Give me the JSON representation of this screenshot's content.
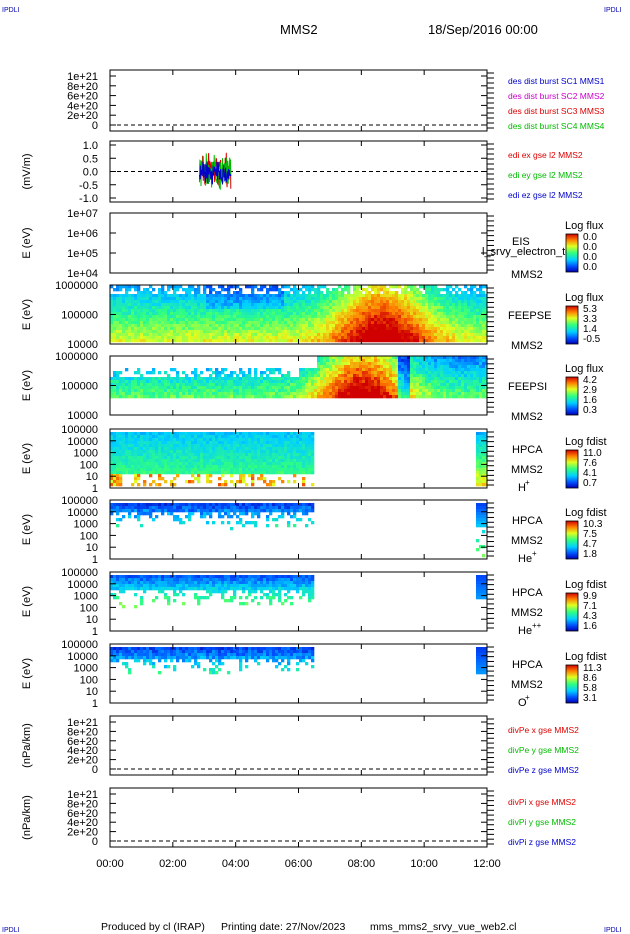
{
  "header": {
    "corner_mark": "IPDLI",
    "spacecraft": "MMS2",
    "datetime": "18/Sep/2016 00:00"
  },
  "footer": {
    "produced_by": "Produced by cl (IRAP)",
    "printing_date": "Printing date: 27/Nov/2023",
    "file_name": "mms_mms2_srvy_vue_web2.cl"
  },
  "chart_data": {
    "type": "multi-panel time series / spectrogram stack",
    "x_axis": {
      "ticks": [
        "00:00",
        "02:00",
        "04:00",
        "06:00",
        "08:00",
        "10:00",
        "12:00"
      ],
      "range_hours": [
        0,
        12
      ]
    },
    "panels": [
      {
        "id": "des-dist",
        "type": "line",
        "ylabel": "",
        "yticks": [
          "1e+21",
          "8e+20",
          "6e+20",
          "4e+20",
          "2e+20",
          "0"
        ],
        "ylim": [
          0,
          1e+21
        ],
        "zero_dashed": true,
        "legend": [
          {
            "text": "des dist burst SC1 MMS1",
            "color": "#0000cc"
          },
          {
            "text": "des dist burst SC2 MMS2",
            "color": "#cc00cc"
          },
          {
            "text": "des dist burst SC3 MMS3",
            "color": "#dd0000"
          },
          {
            "text": "des dist burst SC4 MMS4",
            "color": "#00bb00"
          }
        ]
      },
      {
        "id": "edi",
        "type": "line",
        "ylabel": "(mV/m)",
        "yticks": [
          "1.0",
          "0.5",
          "0.0",
          "-0.5",
          "-1.0"
        ],
        "ylim": [
          -1.0,
          1.0
        ],
        "zero_dashed": true,
        "legend": [
          {
            "text": "edi ex gse l2 MMS2",
            "color": "#dd0000"
          },
          {
            "text": "edi ey gse l2 MMS2",
            "color": "#00bb00"
          },
          {
            "text": "edi ez gse l2 MMS2",
            "color": "#0000cc"
          }
        ],
        "burst_interval_hours": [
          2.85,
          3.85
        ]
      },
      {
        "id": "eis",
        "type": "heatmap",
        "ylabel": "E (eV)",
        "yticks": [
          "1e+07",
          "1e+06",
          "1e+05",
          "1e+04"
        ],
        "log": true,
        "instrument": "EIS",
        "probe": "MMS2",
        "overlay_text": "l_srvy_electron_to",
        "colorbar": {
          "title": "Log flux",
          "ticks": [
            "0.0",
            "0.0",
            "0.0",
            "0.0"
          ]
        }
      },
      {
        "id": "feeps-e",
        "type": "heatmap",
        "ylabel": "E (eV)",
        "yticks": [
          "1000000",
          "100000",
          "10000"
        ],
        "log": true,
        "instrument": "FEEPSE",
        "probe": "MMS2",
        "colorbar": {
          "title": "Log flux",
          "ticks": [
            "5.3",
            "3.3",
            "1.4",
            "-0.5"
          ]
        }
      },
      {
        "id": "feeps-i",
        "type": "heatmap",
        "ylabel": "E (eV)",
        "yticks": [
          "1000000",
          "100000",
          "10000"
        ],
        "log": true,
        "instrument": "FEEPSI",
        "probe": "MMS2",
        "colorbar": {
          "title": "Log flux",
          "ticks": [
            "4.2",
            "2.9",
            "1.6",
            "0.3"
          ]
        }
      },
      {
        "id": "hpca-h",
        "type": "heatmap",
        "ylabel": "E (eV)",
        "yticks": [
          "100000",
          "10000",
          "1000",
          "100",
          "10",
          "1"
        ],
        "log": true,
        "instrument": "HPCA",
        "probe": "MMS2",
        "species": "H",
        "charge": "+",
        "colorbar": {
          "title": "Log fdist",
          "ticks": [
            "11.0",
            "7.6",
            "4.1",
            "0.7"
          ]
        }
      },
      {
        "id": "hpca-he",
        "type": "heatmap",
        "ylabel": "E (eV)",
        "yticks": [
          "100000",
          "10000",
          "1000",
          "100",
          "10",
          "1"
        ],
        "log": true,
        "instrument": "HPCA",
        "probe": "MMS2",
        "species": "He",
        "charge": "+",
        "colorbar": {
          "title": "Log fdist",
          "ticks": [
            "10.3",
            "7.5",
            "4.7",
            "1.8"
          ]
        }
      },
      {
        "id": "hpca-hepp",
        "type": "heatmap",
        "ylabel": "E (eV)",
        "yticks": [
          "100000",
          "10000",
          "1000",
          "100",
          "10",
          "1"
        ],
        "log": true,
        "instrument": "HPCA",
        "probe": "MMS2",
        "species": "He",
        "charge": "++",
        "colorbar": {
          "title": "Log fdist",
          "ticks": [
            "9.9",
            "7.1",
            "4.3",
            "1.6"
          ]
        }
      },
      {
        "id": "hpca-o",
        "type": "heatmap",
        "ylabel": "E (eV)",
        "yticks": [
          "100000",
          "10000",
          "1000",
          "100",
          "10",
          "1"
        ],
        "log": true,
        "instrument": "HPCA",
        "probe": "MMS2",
        "species": "O",
        "charge": "+",
        "colorbar": {
          "title": "Log fdist",
          "ticks": [
            "11.3",
            "8.6",
            "5.8",
            "3.1"
          ]
        }
      },
      {
        "id": "divpe",
        "type": "line",
        "ylabel": "(nPa/km)",
        "yticks": [
          "1e+21",
          "8e+20",
          "6e+20",
          "4e+20",
          "2e+20",
          "0"
        ],
        "ylim": [
          0,
          1e+21
        ],
        "zero_dashed": true,
        "legend": [
          {
            "text": "divPe x gse MMS2",
            "color": "#dd0000"
          },
          {
            "text": "divPe y gse MMS2",
            "color": "#00bb00"
          },
          {
            "text": "divPe z gse MMS2",
            "color": "#0000cc"
          }
        ]
      },
      {
        "id": "divpi",
        "type": "line",
        "ylabel": "(nPa/km)",
        "yticks": [
          "1e+21",
          "8e+20",
          "6e+20",
          "4e+20",
          "2e+20",
          "0"
        ],
        "ylim": [
          0,
          1e+21
        ],
        "zero_dashed": true,
        "legend": [
          {
            "text": "divPi x gse MMS2",
            "color": "#dd0000"
          },
          {
            "text": "divPi y gse MMS2",
            "color": "#00bb00"
          },
          {
            "text": "divPi z gse MMS2",
            "color": "#0000cc"
          }
        ]
      }
    ]
  }
}
